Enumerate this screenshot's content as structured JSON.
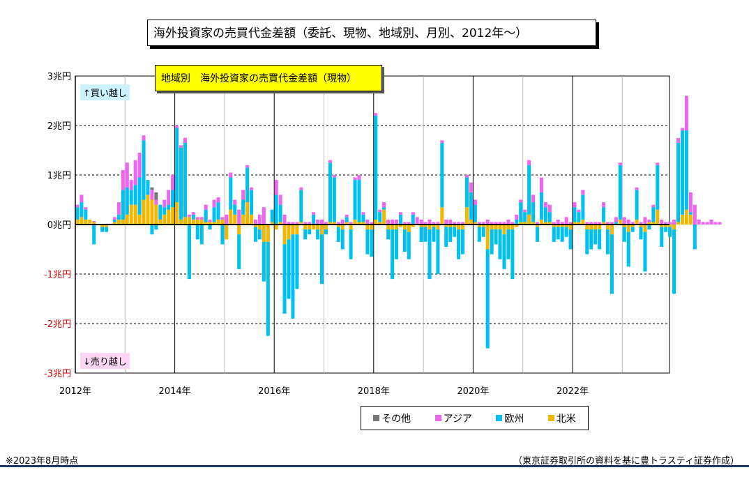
{
  "chart_data": {
    "type": "bar",
    "stacked": true,
    "title": "海外投資家の売買代金差額（委託、現物、地域別、月別、2012年～）",
    "subtitle": "地域別　海外投資家の売買代金差額（現物）",
    "annotation_buy": "↑買い越し",
    "annotation_sell": "↓売り越し",
    "y_tick_labels": [
      "3兆円",
      "2兆円",
      "1兆円",
      "0兆円",
      "-1兆円",
      "-2兆円",
      "-3兆円"
    ],
    "y_ticks": [
      3,
      2,
      1,
      0,
      -1,
      -2,
      -3
    ],
    "ylim": [
      -3,
      3
    ],
    "x_tick_labels": [
      "2012年",
      "2014年",
      "2016年",
      "2018年",
      "2020年",
      "2022年"
    ],
    "start_year": 2012,
    "grid": true,
    "legend_position": "bottom-right",
    "series": [
      {
        "name": "その他",
        "color": "#777777",
        "values": [
          0,
          0,
          0,
          0,
          0,
          0,
          0,
          0,
          0,
          0,
          0,
          0,
          0,
          0,
          0,
          0,
          0,
          0,
          0.05,
          0.15,
          0,
          0,
          0,
          0,
          0,
          0,
          0,
          0,
          0,
          0,
          0,
          0,
          0,
          0,
          0,
          0,
          0,
          0,
          0,
          0,
          0,
          0,
          0,
          0,
          0,
          0,
          0,
          0,
          0,
          0,
          0,
          0,
          0,
          0,
          0,
          0,
          0,
          0,
          0,
          0,
          0,
          0,
          0,
          0,
          0,
          0,
          0,
          0,
          0,
          0,
          0,
          0,
          0,
          0,
          0,
          0,
          0,
          0,
          0,
          0,
          0,
          0,
          0,
          0,
          0,
          0,
          0,
          0,
          0,
          0,
          0,
          0,
          0,
          0,
          0,
          0,
          0,
          0,
          0,
          0,
          0,
          0,
          0,
          0,
          0,
          0,
          0,
          0,
          0,
          0,
          0,
          0,
          0,
          0,
          0,
          0,
          0,
          0,
          0,
          0,
          0,
          0,
          0,
          0,
          0,
          0,
          0,
          0,
          0,
          0,
          0,
          0,
          0,
          0,
          0,
          0,
          0,
          0,
          0,
          0,
          0,
          0,
          0,
          0,
          0,
          0,
          0,
          0,
          0,
          0,
          0,
          0,
          0,
          0,
          0,
          0,
          0,
          0,
          0,
          0,
          0,
          0
        ]
      },
      {
        "name": "アジア",
        "color": "#ee66ee",
        "values": [
          0.05,
          0.15,
          0.05,
          0,
          0.02,
          0,
          0,
          0,
          0,
          0.05,
          0.25,
          0.4,
          0.5,
          0.2,
          0.5,
          0.5,
          0.1,
          0,
          0.2,
          0.1,
          0,
          0.15,
          0.3,
          0.3,
          0.05,
          0.05,
          0.1,
          0.05,
          0.05,
          0.05,
          0.05,
          0.1,
          0.05,
          0.15,
          0.1,
          0.05,
          0.2,
          0.1,
          0.1,
          0.3,
          0.2,
          0.05,
          0.05,
          0.1,
          0.2,
          0.35,
          0,
          0,
          0.3,
          0.2,
          0.2,
          0.05,
          0.05,
          0.05,
          0.05,
          0.05,
          0.05,
          0.05,
          0.1,
          0.1,
          0.05,
          0.05,
          0.05,
          0.05,
          0.1,
          0.05,
          0.05,
          0.05,
          0.1,
          0.05,
          0.1,
          0.05,
          0.05,
          0.05,
          0.1,
          0.1,
          0.1,
          0.1,
          0.05,
          0.05,
          0.05,
          0.05,
          0.15,
          0.1,
          0.05,
          0.1,
          0.05,
          0.05,
          0.05,
          0.1,
          0.1,
          0.05,
          0.05,
          0.05,
          0.05,
          0.2,
          0.1,
          0.05,
          0.05,
          0.1,
          0.05,
          0.05,
          0.05,
          0.05,
          0.1,
          0.05,
          0.1,
          0.05,
          0.05,
          0.1,
          0.15,
          0.05,
          0.3,
          0.1,
          0.15,
          0.05,
          0.1,
          0.05,
          0.15,
          0.05,
          0.1,
          0.05,
          0.1,
          0.05,
          0.05,
          0.05,
          0.05,
          0.1,
          0.05,
          0.05,
          0.1,
          0.05,
          0.15,
          0.1,
          0.05,
          0.05,
          0.05,
          0.15,
          0.05,
          0.05,
          0.05,
          0.1,
          0.05,
          0.05,
          0.1,
          0.1,
          0.05,
          0.7,
          0.4,
          0.4,
          0.1,
          0.05,
          0.05,
          0.1,
          0.05,
          0.05
        ]
      },
      {
        "name": "欧州",
        "color": "#00c0ef",
        "values": [
          0.25,
          0.3,
          0.2,
          0,
          -0.4,
          0,
          -0.1,
          -0.1,
          0,
          0.05,
          0.1,
          0.6,
          0.55,
          0.3,
          0.4,
          0.75,
          1.2,
          0.3,
          -0.2,
          -0.1,
          0.3,
          0.15,
          0.1,
          0.35,
          1.5,
          1.45,
          1.5,
          -1.1,
          0.1,
          -0.3,
          -0.4,
          0.25,
          -0.1,
          0.3,
          0.35,
          -0.4,
          0,
          0.65,
          0.2,
          -0.7,
          0.3,
          0.7,
          0.5,
          -0.3,
          -0.2,
          -0.8,
          -1.9,
          0.25,
          0.6,
          0.35,
          -1.4,
          -1.2,
          -1.7,
          -1.1,
          0.65,
          -0.2,
          -0.1,
          0.2,
          -0.2,
          -1.0,
          -0.1,
          1.2,
          0.9,
          -0.3,
          -0.4,
          0.1,
          -0.6,
          0.8,
          0.85,
          0.15,
          -0.5,
          -0.55,
          2.1,
          0.2,
          0.05,
          -0.2,
          -1.0,
          -0.6,
          0.2,
          -0.45,
          -0.55,
          0.2,
          0,
          -0.3,
          -0.3,
          -1.0,
          -0.3,
          -0.9,
          1.3,
          -0.4,
          -0.3,
          -0.2,
          -0.6,
          -0.5,
          0.6,
          0.55,
          0.35,
          -0.3,
          -0.2,
          -2.0,
          -0.5,
          -0.3,
          -0.6,
          -0.7,
          -0.6,
          -1.0,
          0.1,
          0.4,
          0.2,
          1.0,
          0.4,
          -0.3,
          0.55,
          0.3,
          0.2,
          -0.3,
          -0.25,
          -0.3,
          -0.2,
          -0.4,
          0.3,
          0.2,
          0.5,
          -0.5,
          -0.4,
          -0.3,
          -0.4,
          0.3,
          -0.5,
          -1.2,
          0.05,
          1.1,
          -0.3,
          -0.7,
          -0.1,
          0.6,
          -0.25,
          -0.8,
          -0.1,
          0.3,
          0.9,
          -0.4,
          -0.1,
          -0.2,
          -1.3,
          1.6,
          1.7,
          1.6,
          0.05,
          -0.5,
          0,
          0,
          0,
          0
        ]
      },
      {
        "name": "北米",
        "color": "#f2b700",
        "values": [
          0.1,
          0.15,
          0.1,
          0.1,
          0.05,
          0,
          -0.05,
          -0.05,
          0,
          0.05,
          0.1,
          0.1,
          0.2,
          0.4,
          0.4,
          0.2,
          0.5,
          0.6,
          0.5,
          0.4,
          0.1,
          0.2,
          0.3,
          0.35,
          0.45,
          0.1,
          0.15,
          0.15,
          0.1,
          0.1,
          0.1,
          0.05,
          0.05,
          0.05,
          0.1,
          0.1,
          -0.3,
          0.3,
          0.2,
          -0.2,
          0.2,
          0.45,
          0.2,
          -0.05,
          -0.1,
          -0.35,
          -0.35,
          0.05,
          -0.1,
          0.05,
          -0.4,
          -0.3,
          -0.2,
          -0.2,
          0.05,
          -0.1,
          -0.1,
          -0.1,
          -0.1,
          -0.2,
          -0.1,
          0.05,
          0.05,
          -0.05,
          -0.1,
          0.05,
          -0.1,
          0.1,
          0.05,
          0.05,
          -0.1,
          -0.1,
          0.1,
          0.05,
          0.3,
          -0.1,
          -0.1,
          -0.1,
          -0.05,
          -0.1,
          -0.15,
          -0.05,
          0,
          -0.05,
          -0.05,
          -0.1,
          -0.05,
          -0.1,
          0.35,
          -0.05,
          -0.05,
          -0.05,
          -0.1,
          -0.1,
          0.35,
          0.1,
          0.05,
          -0.05,
          -0.05,
          -0.5,
          -0.1,
          -0.1,
          -0.1,
          -0.2,
          -0.1,
          -0.1,
          -0.05,
          0.05,
          0.05,
          0.2,
          0.05,
          -0.05,
          0.1,
          0.05,
          0.05,
          -0.05,
          -0.05,
          -0.05,
          -0.05,
          -0.1,
          0.05,
          0.05,
          0.1,
          -0.1,
          -0.1,
          -0.1,
          -0.1,
          0.05,
          -0.1,
          -0.2,
          0,
          0.1,
          -0.05,
          -0.15,
          -0.05,
          0.1,
          -0.05,
          -0.15,
          0.05,
          0.05,
          0.3,
          -0.05,
          -0.05,
          -0.05,
          -0.1,
          0.05,
          0.2,
          0.3,
          0.2,
          0,
          0,
          0,
          0,
          0
        ]
      }
    ]
  },
  "legend": {
    "items": [
      {
        "label": "その他",
        "color": "#777777"
      },
      {
        "label": "アジア",
        "color": "#ee66ee"
      },
      {
        "label": "欧州",
        "color": "#00c0ef"
      },
      {
        "label": "北米",
        "color": "#f2b700"
      }
    ]
  },
  "footer": {
    "note": "※2023年8月時点",
    "source": "（東京証券取引所の資料を基に豊トラスティ証券作成）"
  }
}
